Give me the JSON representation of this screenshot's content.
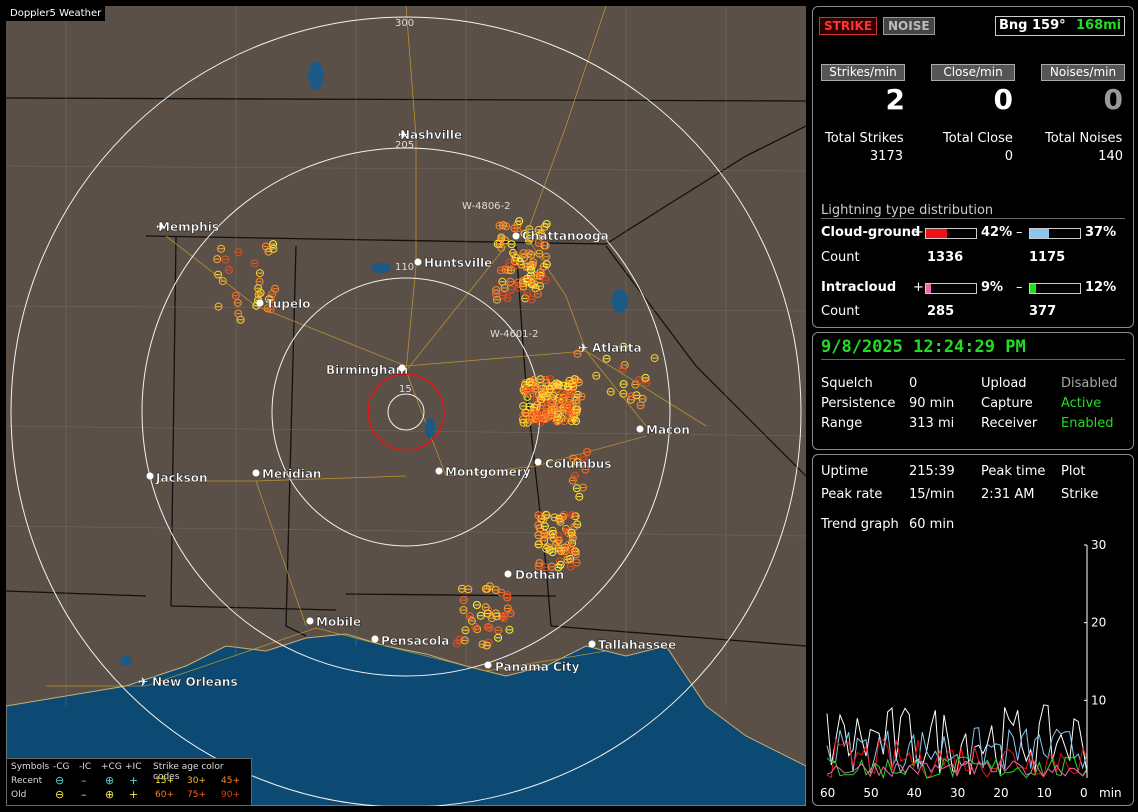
{
  "app_title": "Doppler5 Weather",
  "header": {
    "strike_tag": "STRIKE",
    "noise_tag": "NOISE",
    "bearing": "Bng 159°",
    "distance": "168mi"
  },
  "rates": {
    "strikes_label": "Strikes/min",
    "strikes_value": "2",
    "close_label": "Close/min",
    "close_value": "0",
    "noises_label": "Noises/min",
    "noises_value": "0"
  },
  "totals": {
    "strikes_label": "Total Strikes",
    "strikes_value": "3173",
    "close_label": "Total Close",
    "close_value": "0",
    "noises_label": "Total Noises",
    "noises_value": "140"
  },
  "distribution": {
    "title": "Lightning type distribution",
    "cg_label": "Cloud-ground",
    "cg_pos_pct": "42%",
    "cg_neg_pct": "37%",
    "cg_pos_frac": 0.42,
    "cg_neg_frac": 0.37,
    "count_label": "Count",
    "cg_pos_count": "1336",
    "cg_neg_count": "1175",
    "ic_label": "Intracloud",
    "ic_pos_pct": "9%",
    "ic_neg_pct": "12%",
    "ic_pos_frac": 0.09,
    "ic_neg_frac": 0.12,
    "ic_pos_count": "285",
    "ic_neg_count": "377",
    "plus": "+",
    "minus": "–",
    "colors": {
      "cg_pos": "#ee1111",
      "cg_neg": "#88c8f0",
      "ic_pos": "#ee66aa",
      "ic_neg": "#22dd22"
    }
  },
  "status": {
    "datetime": "9/8/2025 12:24:29 PM",
    "squelch_label": "Squelch",
    "squelch_value": "0",
    "persistence_label": "Persistence",
    "persistence_value": "90 min",
    "range_label": "Range",
    "range_value": "313 mi",
    "upload_label": "Upload",
    "upload_value": "Disabled",
    "capture_label": "Capture",
    "capture_value": "Active",
    "receiver_label": "Receiver",
    "receiver_value": "Enabled"
  },
  "stats": {
    "uptime_label": "Uptime",
    "uptime_value": "215:39",
    "peak_time_label": "Peak time",
    "peak_time_value": "2:31 AM",
    "plot_label": "Plot",
    "plot_value": "Strike",
    "peak_rate_label": "Peak rate",
    "peak_rate_value": "15/min",
    "trend_label": "Trend graph",
    "trend_value": "60 min"
  },
  "trend_axis": {
    "y_ticks": [
      "30",
      "20",
      "10"
    ],
    "x_ticks": [
      "60",
      "50",
      "40",
      "30",
      "20",
      "10",
      "0"
    ],
    "x_unit": "min",
    "y_max": 30
  },
  "map": {
    "ring_labels": [
      "300",
      "205",
      "110",
      "15"
    ],
    "cities": [
      "Nashville",
      "Memphis",
      "Chattanooga",
      "Huntsville",
      "Tupelo",
      "Atlanta",
      "Birmingham",
      "Macon",
      "Columbus",
      "Jackson",
      "Meridian",
      "Montgomery",
      "Dothan",
      "Mobile",
      "Pensacola",
      "Tallahassee",
      "Panama City",
      "New Orleans"
    ],
    "storm_labels": [
      "W-4806-2",
      "W-4601-2"
    ]
  },
  "legend": {
    "symbols_label": "Symbols",
    "h_ncg": "-CG",
    "h_nic": "-IC",
    "h_pcg": "+CG",
    "h_pic": "+IC",
    "age_title": "Strike age color codes",
    "recent_label": "Recent",
    "old_label": "Old",
    "ages_recent": [
      "15+",
      "30+",
      "45+"
    ],
    "ages_old": [
      "60+",
      "75+",
      "90+"
    ]
  }
}
